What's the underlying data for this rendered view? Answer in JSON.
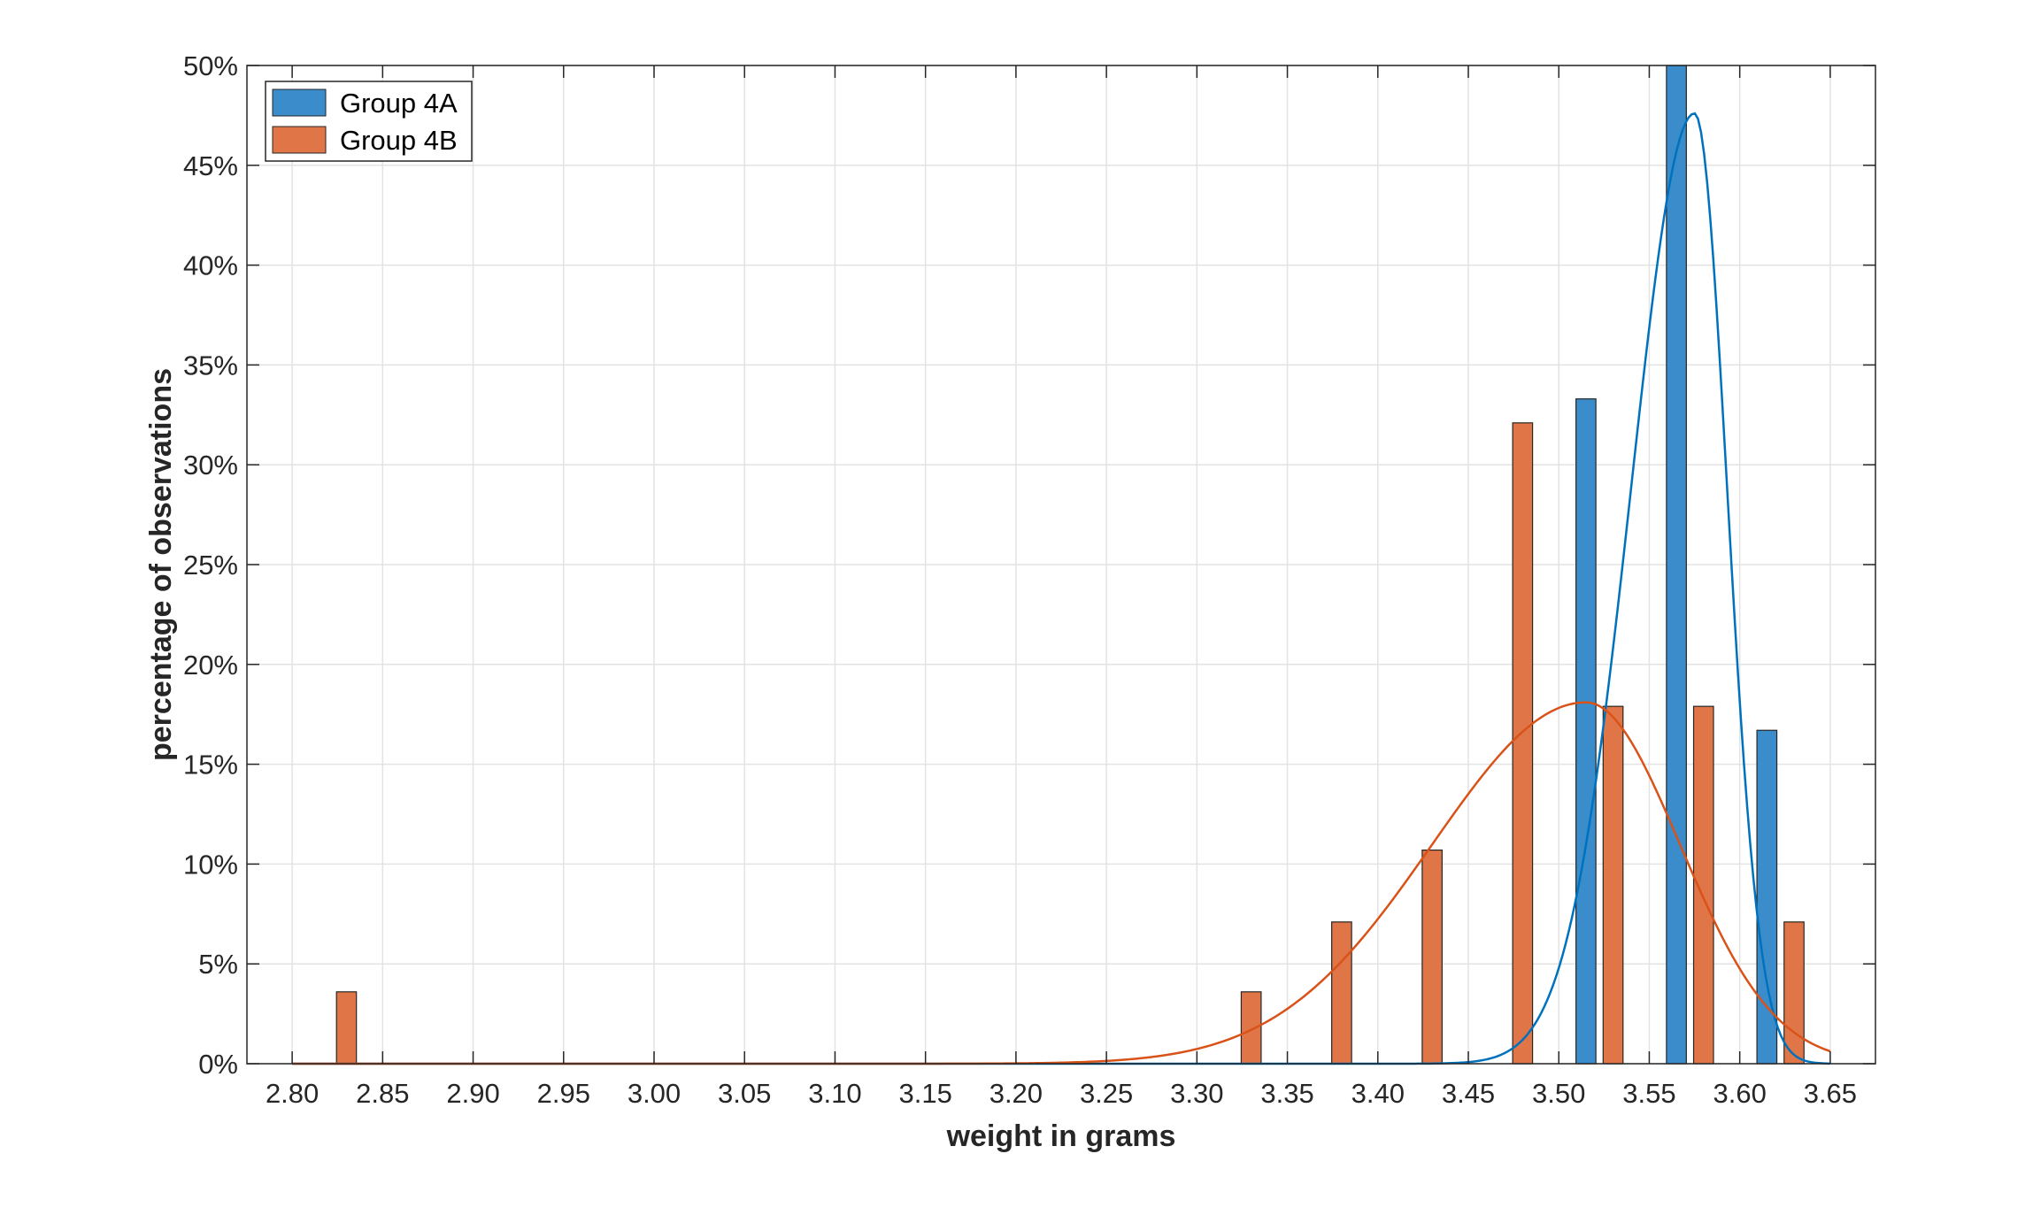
{
  "chart_data": {
    "type": "bar",
    "title": "",
    "xlabel": "weight in grams",
    "ylabel": "percentage of observations",
    "xlim": [
      2.775,
      3.675
    ],
    "ylim": [
      0,
      50
    ],
    "x_ticks": [
      2.8,
      2.85,
      2.9,
      2.95,
      3.0,
      3.05,
      3.1,
      3.15,
      3.2,
      3.25,
      3.3,
      3.35,
      3.4,
      3.45,
      3.5,
      3.55,
      3.6,
      3.65
    ],
    "x_tick_labels": [
      "2.80",
      "2.85",
      "2.90",
      "2.95",
      "3.00",
      "3.05",
      "3.10",
      "3.15",
      "3.20",
      "3.25",
      "3.30",
      "3.35",
      "3.40",
      "3.45",
      "3.50",
      "3.55",
      "3.60",
      "3.65"
    ],
    "y_ticks": [
      0,
      5,
      10,
      15,
      20,
      25,
      30,
      35,
      40,
      45,
      50
    ],
    "y_tick_labels": [
      "0%",
      "5%",
      "10%",
      "15%",
      "20%",
      "25%",
      "30%",
      "35%",
      "40%",
      "45%",
      "50%"
    ],
    "grid": true,
    "legend_position": "top-left",
    "series": [
      {
        "name": "Group 4A",
        "color": "#3a8ccb",
        "curve_color": "#0072bd",
        "points": [
          {
            "x": 3.515,
            "y": 33.3
          },
          {
            "x": 3.565,
            "y": 50.0
          },
          {
            "x": 3.615,
            "y": 16.7
          }
        ],
        "fit": {
          "type": "normal",
          "mean": 3.575,
          "peak": 47.6
        }
      },
      {
        "name": "Group 4B",
        "color": "#e07648",
        "curve_color": "#d95319",
        "points": [
          {
            "x": 2.83,
            "y": 3.6
          },
          {
            "x": 3.33,
            "y": 3.6
          },
          {
            "x": 3.38,
            "y": 7.1
          },
          {
            "x": 3.43,
            "y": 10.7
          },
          {
            "x": 3.48,
            "y": 32.1
          },
          {
            "x": 3.53,
            "y": 17.9
          },
          {
            "x": 3.58,
            "y": 17.9
          },
          {
            "x": 3.63,
            "y": 7.1
          }
        ],
        "fit": {
          "type": "normal",
          "mean": 3.515,
          "peak": 18.1
        }
      }
    ]
  }
}
